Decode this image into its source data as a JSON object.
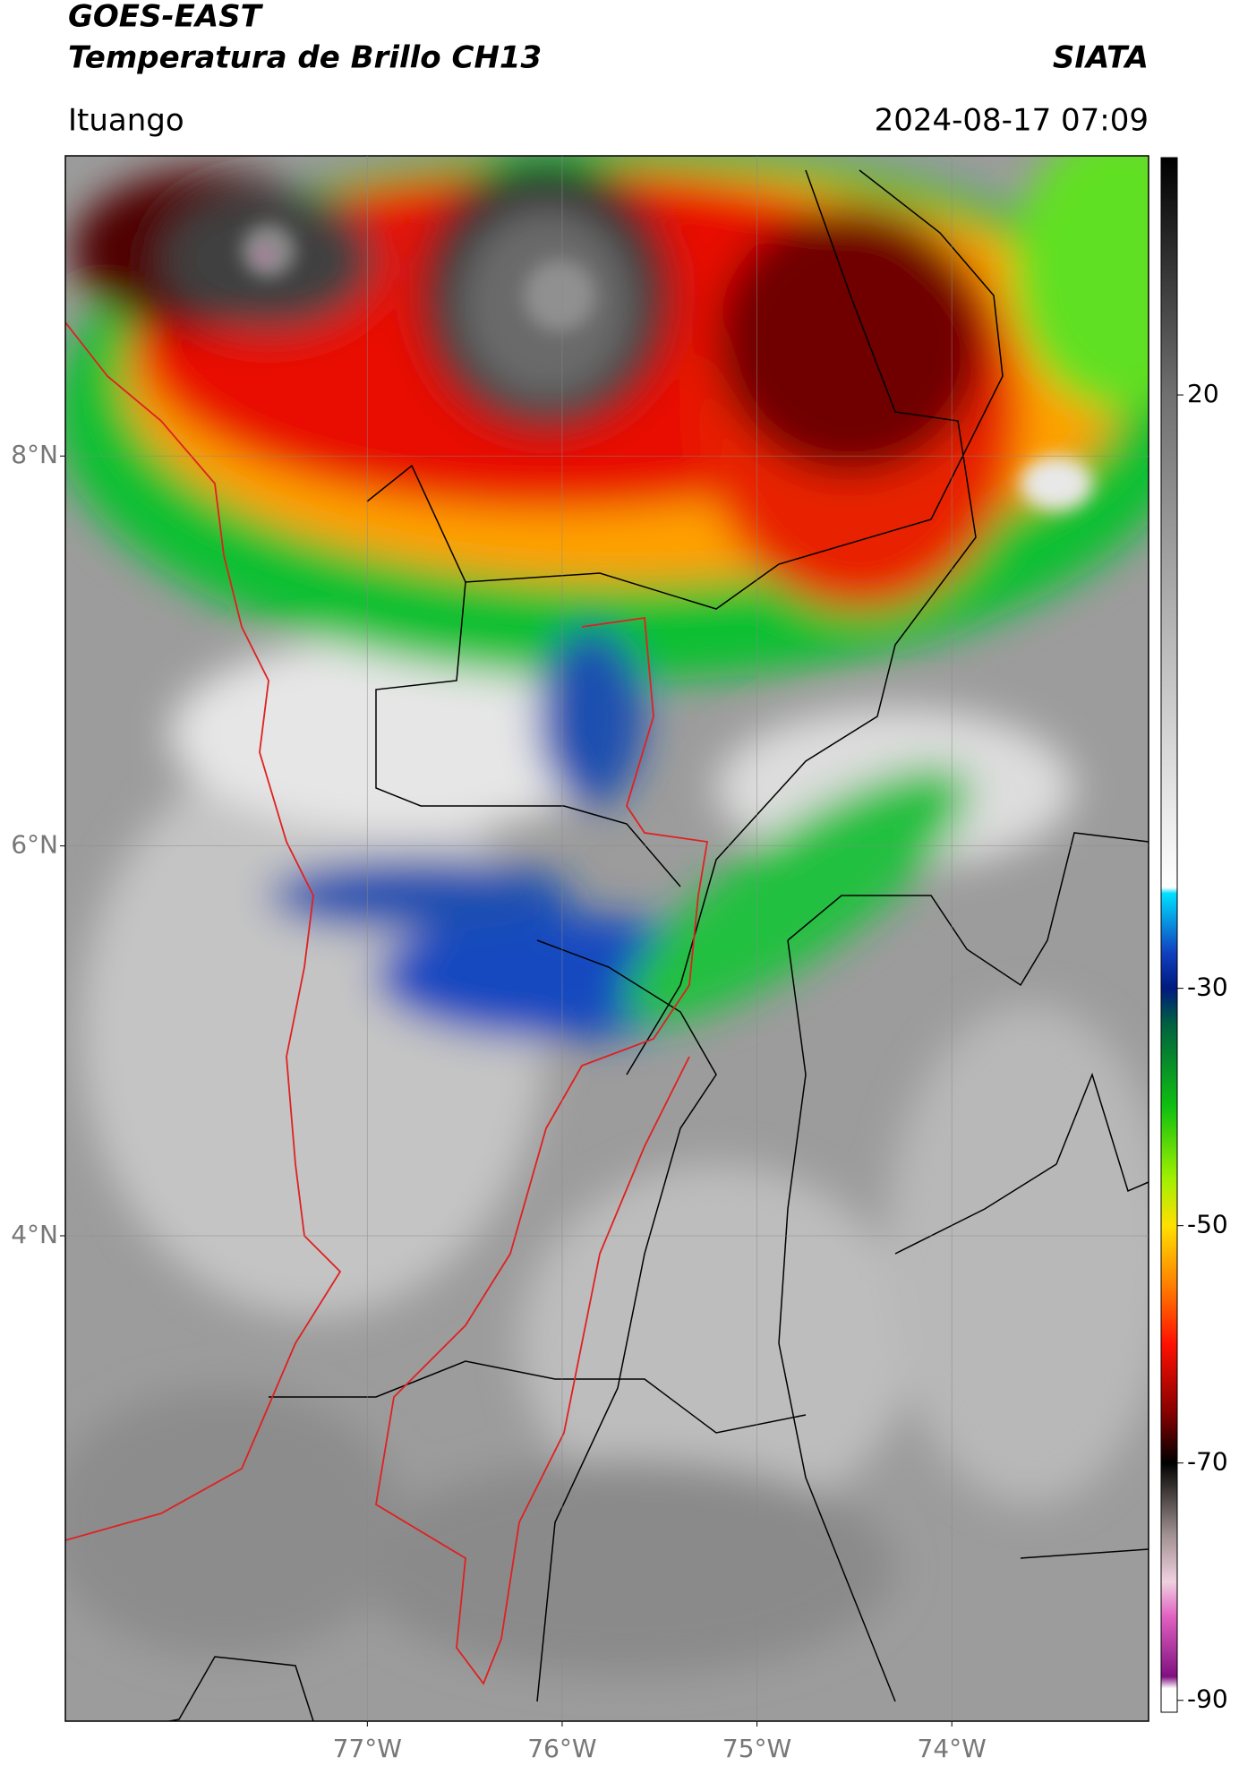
{
  "header": {
    "title": "GOES-EAST",
    "subtitle": "Temperatura de Brillo CH13",
    "source": "SIATA",
    "location": "Ituango",
    "datetime": "2024-08-17 07:09"
  },
  "map": {
    "xlim": [
      -78.55,
      -72.99
    ],
    "ylim": [
      1.51,
      9.54
    ],
    "lat_ticks": [
      {
        "value": 8,
        "label": "8°N"
      },
      {
        "value": 6,
        "label": "6°N"
      },
      {
        "value": 4,
        "label": "4°N"
      }
    ],
    "lon_ticks": [
      {
        "value": -77,
        "label": "77°W"
      },
      {
        "value": -76,
        "label": "76°W"
      },
      {
        "value": -75,
        "label": "75°W"
      },
      {
        "value": -74,
        "label": "74°W"
      }
    ],
    "grid": true
  },
  "colorbar": {
    "clim": [
      -91,
      40
    ],
    "ticks": [
      20,
      -30,
      -50,
      -70,
      -90
    ],
    "colormap": [
      {
        "value": 40,
        "color": "#000000"
      },
      {
        "value": 20,
        "color": "#707070"
      },
      {
        "value": -5,
        "color": "#c8c8c8"
      },
      {
        "value": -21.5,
        "color": "#ffffff"
      },
      {
        "value": -22,
        "color": "#00e0ff"
      },
      {
        "value": -27,
        "color": "#1040c0"
      },
      {
        "value": -30,
        "color": "#001a80"
      },
      {
        "value": -33,
        "color": "#006040"
      },
      {
        "value": -40,
        "color": "#10c010"
      },
      {
        "value": -46,
        "color": "#a0f000"
      },
      {
        "value": -50,
        "color": "#ffe000"
      },
      {
        "value": -55,
        "color": "#ff8000"
      },
      {
        "value": -60,
        "color": "#ff1000"
      },
      {
        "value": -66,
        "color": "#800000"
      },
      {
        "value": -70,
        "color": "#000000"
      },
      {
        "value": -76,
        "color": "#a09090"
      },
      {
        "value": -80,
        "color": "#f0d0e0"
      },
      {
        "value": -83,
        "color": "#e060c0"
      },
      {
        "value": -88,
        "color": "#801080"
      },
      {
        "value": -89,
        "color": "#ffffff"
      },
      {
        "value": -91,
        "color": "#ffffff"
      }
    ]
  }
}
